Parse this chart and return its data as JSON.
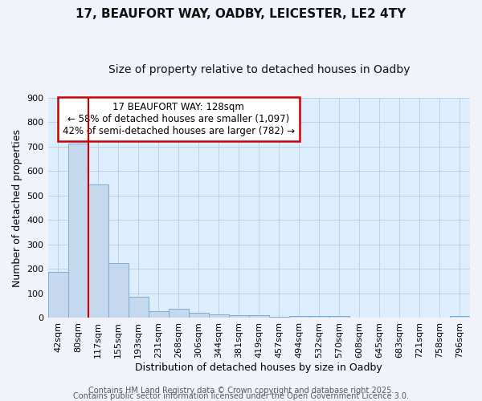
{
  "title_line1": "17, BEAUFORT WAY, OADBY, LEICESTER, LE2 4TY",
  "title_line2": "Size of property relative to detached houses in Oadby",
  "xlabel": "Distribution of detached houses by size in Oadby",
  "ylabel": "Number of detached properties",
  "categories": [
    "42sqm",
    "80sqm",
    "117sqm",
    "155sqm",
    "193sqm",
    "231sqm",
    "268sqm",
    "306sqm",
    "344sqm",
    "381sqm",
    "419sqm",
    "457sqm",
    "494sqm",
    "532sqm",
    "570sqm",
    "608sqm",
    "645sqm",
    "683sqm",
    "721sqm",
    "758sqm",
    "796sqm"
  ],
  "values": [
    187,
    713,
    545,
    225,
    88,
    28,
    38,
    22,
    13,
    11,
    10,
    5,
    8,
    7,
    7,
    0,
    0,
    0,
    0,
    0,
    9
  ],
  "bar_color": "#c5d9ee",
  "bar_edge_color": "#7aaad4",
  "vline_index": 2,
  "vline_color": "#cc0000",
  "annotation_text": "17 BEAUFORT WAY: 128sqm\n← 58% of detached houses are smaller (1,097)\n42% of semi-detached houses are larger (782) →",
  "annotation_box_color": "#ffffff",
  "annotation_box_edge": "#cc0000",
  "ylim": [
    0,
    900
  ],
  "yticks": [
    0,
    100,
    200,
    300,
    400,
    500,
    600,
    700,
    800,
    900
  ],
  "plot_bg_color": "#ddeeff",
  "fig_bg_color": "#f0f4fa",
  "footer_line1": "Contains HM Land Registry data © Crown copyright and database right 2025.",
  "footer_line2": "Contains public sector information licensed under the Open Government Licence 3.0.",
  "title_fontsize": 11,
  "subtitle_fontsize": 10,
  "axis_label_fontsize": 9,
  "tick_fontsize": 8,
  "annotation_fontsize": 8.5,
  "footer_fontsize": 7
}
